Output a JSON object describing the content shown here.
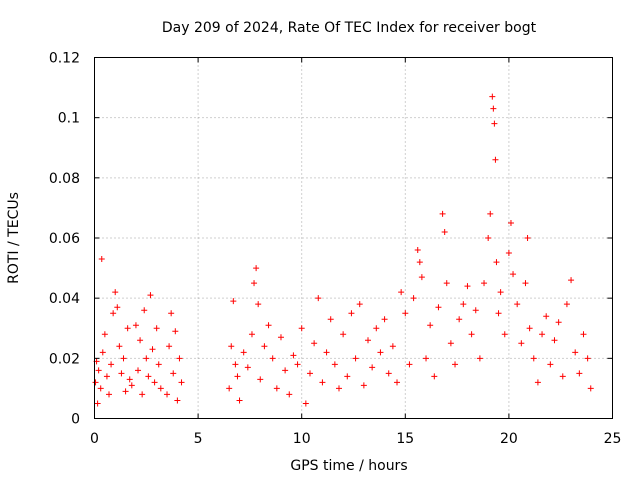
{
  "chart_data": {
    "type": "scatter",
    "title": "Day 209 of 2024, Rate Of TEC Index for receiver bogt",
    "xlabel": "GPS time / hours",
    "ylabel": "ROTI / TECUs",
    "xlim": [
      0,
      25
    ],
    "ylim": [
      0,
      0.12
    ],
    "xticks": [
      "0",
      "5",
      "10",
      "15",
      "20",
      "25"
    ],
    "yticks": [
      "0",
      "0.02",
      "0.04",
      "0.06",
      "0.08",
      "0.1",
      "0.12"
    ],
    "grid": true,
    "marker": "+",
    "color": "#ff0000",
    "series": [
      {
        "name": "",
        "points": [
          [
            0.05,
            0.012
          ],
          [
            0.1,
            0.019
          ],
          [
            0.15,
            0.005
          ],
          [
            0.2,
            0.016
          ],
          [
            0.3,
            0.01
          ],
          [
            0.35,
            0.053
          ],
          [
            0.4,
            0.022
          ],
          [
            0.5,
            0.028
          ],
          [
            0.6,
            0.014
          ],
          [
            0.7,
            0.008
          ],
          [
            0.8,
            0.018
          ],
          [
            0.9,
            0.035
          ],
          [
            1.0,
            0.042
          ],
          [
            1.1,
            0.037
          ],
          [
            1.2,
            0.024
          ],
          [
            1.3,
            0.015
          ],
          [
            1.4,
            0.02
          ],
          [
            1.5,
            0.009
          ],
          [
            1.6,
            0.03
          ],
          [
            1.7,
            0.013
          ],
          [
            1.8,
            0.011
          ],
          [
            2.0,
            0.031
          ],
          [
            2.1,
            0.016
          ],
          [
            2.2,
            0.026
          ],
          [
            2.3,
            0.008
          ],
          [
            2.4,
            0.036
          ],
          [
            2.5,
            0.02
          ],
          [
            2.6,
            0.014
          ],
          [
            2.7,
            0.041
          ],
          [
            2.8,
            0.023
          ],
          [
            2.9,
            0.012
          ],
          [
            3.0,
            0.03
          ],
          [
            3.1,
            0.018
          ],
          [
            3.2,
            0.01
          ],
          [
            3.5,
            0.008
          ],
          [
            3.6,
            0.024
          ],
          [
            3.7,
            0.035
          ],
          [
            3.8,
            0.015
          ],
          [
            3.9,
            0.029
          ],
          [
            4.0,
            0.006
          ],
          [
            4.1,
            0.02
          ],
          [
            4.2,
            0.012
          ],
          [
            6.5,
            0.01
          ],
          [
            6.6,
            0.024
          ],
          [
            6.7,
            0.039
          ],
          [
            6.8,
            0.018
          ],
          [
            6.9,
            0.014
          ],
          [
            7.0,
            0.006
          ],
          [
            7.2,
            0.022
          ],
          [
            7.4,
            0.017
          ],
          [
            7.6,
            0.028
          ],
          [
            7.7,
            0.045
          ],
          [
            7.8,
            0.05
          ],
          [
            7.9,
            0.038
          ],
          [
            8.0,
            0.013
          ],
          [
            8.2,
            0.024
          ],
          [
            8.4,
            0.031
          ],
          [
            8.6,
            0.02
          ],
          [
            8.8,
            0.01
          ],
          [
            9.0,
            0.027
          ],
          [
            9.2,
            0.016
          ],
          [
            9.4,
            0.008
          ],
          [
            9.6,
            0.021
          ],
          [
            9.8,
            0.018
          ],
          [
            10.0,
            0.03
          ],
          [
            10.2,
            0.005
          ],
          [
            10.4,
            0.015
          ],
          [
            10.6,
            0.025
          ],
          [
            10.8,
            0.04
          ],
          [
            11.0,
            0.012
          ],
          [
            11.2,
            0.022
          ],
          [
            11.4,
            0.033
          ],
          [
            11.6,
            0.018
          ],
          [
            11.8,
            0.01
          ],
          [
            12.0,
            0.028
          ],
          [
            12.2,
            0.014
          ],
          [
            12.4,
            0.035
          ],
          [
            12.6,
            0.02
          ],
          [
            12.8,
            0.038
          ],
          [
            13.0,
            0.011
          ],
          [
            13.2,
            0.026
          ],
          [
            13.4,
            0.017
          ],
          [
            13.6,
            0.03
          ],
          [
            13.8,
            0.022
          ],
          [
            14.0,
            0.033
          ],
          [
            14.2,
            0.015
          ],
          [
            14.4,
            0.024
          ],
          [
            14.6,
            0.012
          ],
          [
            14.8,
            0.042
          ],
          [
            15.0,
            0.035
          ],
          [
            15.2,
            0.018
          ],
          [
            15.4,
            0.04
          ],
          [
            15.6,
            0.056
          ],
          [
            15.7,
            0.052
          ],
          [
            15.8,
            0.047
          ],
          [
            16.0,
            0.02
          ],
          [
            16.2,
            0.031
          ],
          [
            16.4,
            0.014
          ],
          [
            16.6,
            0.037
          ],
          [
            16.8,
            0.068
          ],
          [
            16.9,
            0.062
          ],
          [
            17.0,
            0.045
          ],
          [
            17.2,
            0.025
          ],
          [
            17.4,
            0.018
          ],
          [
            17.6,
            0.033
          ],
          [
            17.8,
            0.038
          ],
          [
            18.0,
            0.044
          ],
          [
            18.2,
            0.028
          ],
          [
            18.4,
            0.036
          ],
          [
            18.6,
            0.02
          ],
          [
            18.8,
            0.045
          ],
          [
            19.0,
            0.06
          ],
          [
            19.1,
            0.068
          ],
          [
            19.2,
            0.107
          ],
          [
            19.25,
            0.103
          ],
          [
            19.3,
            0.098
          ],
          [
            19.35,
            0.086
          ],
          [
            19.4,
            0.052
          ],
          [
            19.5,
            0.035
          ],
          [
            19.6,
            0.042
          ],
          [
            19.8,
            0.028
          ],
          [
            20.0,
            0.055
          ],
          [
            20.1,
            0.065
          ],
          [
            20.2,
            0.048
          ],
          [
            20.4,
            0.038
          ],
          [
            20.6,
            0.025
          ],
          [
            20.8,
            0.045
          ],
          [
            20.9,
            0.06
          ],
          [
            21.0,
            0.03
          ],
          [
            21.2,
            0.02
          ],
          [
            21.4,
            0.012
          ],
          [
            21.6,
            0.028
          ],
          [
            21.8,
            0.034
          ],
          [
            22.0,
            0.018
          ],
          [
            22.2,
            0.026
          ],
          [
            22.4,
            0.032
          ],
          [
            22.6,
            0.014
          ],
          [
            22.8,
            0.038
          ],
          [
            23.0,
            0.046
          ],
          [
            23.2,
            0.022
          ],
          [
            23.4,
            0.015
          ],
          [
            23.6,
            0.028
          ],
          [
            23.8,
            0.02
          ],
          [
            23.95,
            0.01
          ]
        ]
      }
    ]
  }
}
